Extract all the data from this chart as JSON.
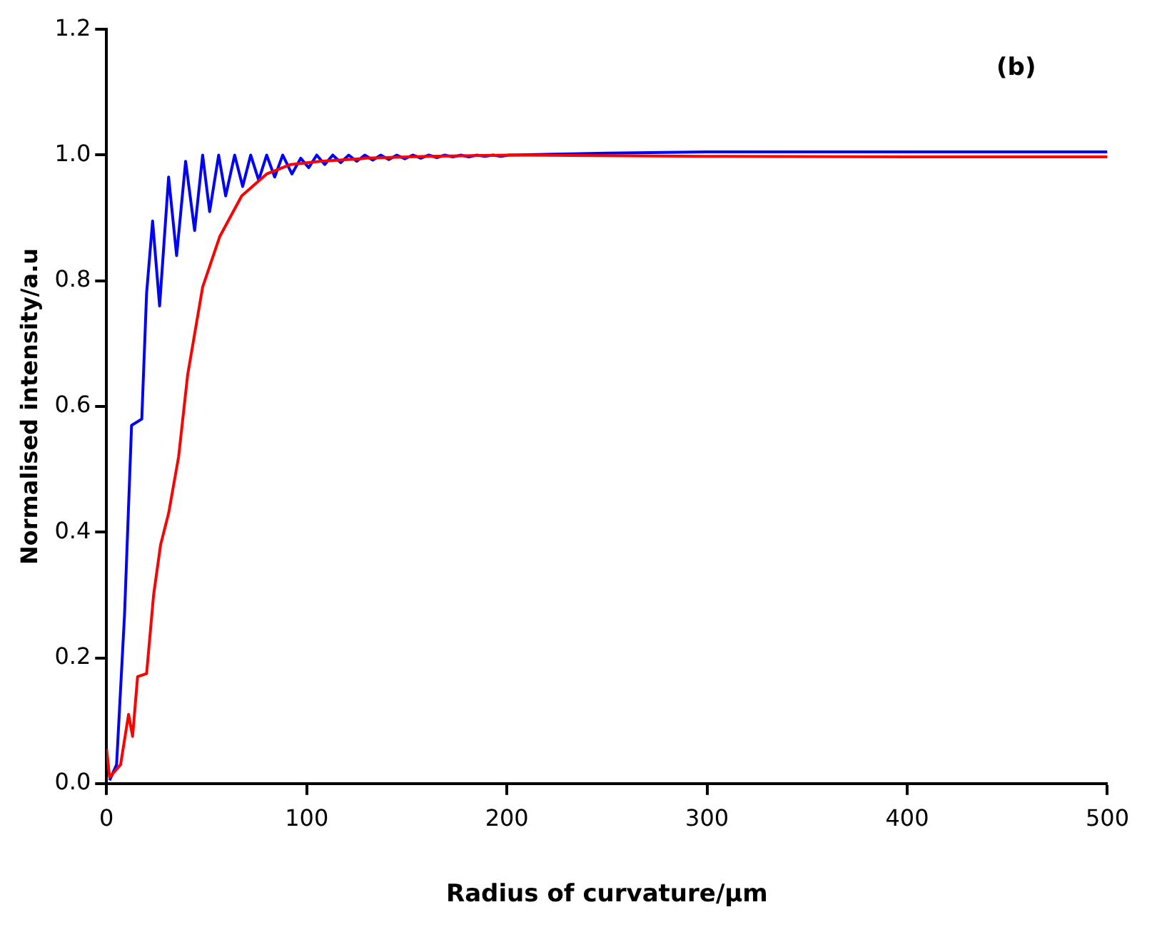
{
  "chart_data": {
    "type": "line",
    "xlabel": "Radius of curvature/µm",
    "ylabel": "Normalised intensity/a.u",
    "annotations": [
      "(b)"
    ],
    "xlim": [
      0,
      500
    ],
    "xticks": [
      0,
      100,
      200,
      300,
      400,
      500
    ],
    "ylim": [
      0,
      1.2
    ],
    "yticks": [
      {
        "value": 0,
        "label": "0.0"
      },
      0.2,
      0.4,
      0.6,
      0.8,
      {
        "value": 1,
        "label": "1.0"
      },
      1.2
    ],
    "grid": false,
    "legend": false,
    "marker": "none",
    "line_style": "solid",
    "series": [
      {
        "color": "#0000ff",
        "x": [
          1.5,
          5,
          9,
          12.5,
          17.6,
          20,
          23,
          26.5,
          31,
          35,
          39.5,
          44,
          48,
          51.5,
          56,
          59.5,
          64,
          68,
          72,
          76,
          80,
          84,
          88,
          92.6,
          97,
          101,
          105,
          109,
          113,
          117,
          121,
          125,
          129,
          133,
          137,
          141,
          145,
          149,
          153,
          157,
          161,
          165,
          169,
          173,
          177,
          181,
          185,
          189,
          193,
          197,
          201,
          250,
          300,
          400,
          500
        ],
        "values": [
          0.005,
          0.03,
          0.27,
          0.57,
          0.58,
          0.78,
          0.895,
          0.76,
          0.965,
          0.84,
          0.99,
          0.88,
          1.0,
          0.91,
          1.0,
          0.935,
          1.0,
          0.95,
          1.0,
          0.96,
          1.0,
          0.965,
          1.0,
          0.97,
          0.995,
          0.98,
          1.0,
          0.985,
          1.0,
          0.988,
          1.0,
          0.99,
          1.0,
          0.992,
          1.0,
          0.993,
          1.0,
          0.994,
          1.0,
          0.995,
          1.0,
          0.996,
          1.0,
          0.997,
          1.0,
          0.997,
          1.0,
          0.998,
          1.0,
          0.998,
          1.0,
          1.003,
          1.005,
          1.005,
          1.005
        ]
      },
      {
        "color": "#ff0000",
        "x": [
          0,
          1.5,
          7,
          11,
          13,
          15.5,
          20,
          23.5,
          27,
          31,
          36,
          40.5,
          48,
          56.5,
          67.5,
          80,
          92,
          106.6,
          130,
          160,
          200,
          300,
          400,
          500
        ],
        "values": [
          0.055,
          0.01,
          0.03,
          0.11,
          0.075,
          0.17,
          0.175,
          0.3,
          0.38,
          0.43,
          0.52,
          0.65,
          0.79,
          0.87,
          0.935,
          0.97,
          0.985,
          0.99,
          0.995,
          0.998,
          1.0,
          0.998,
          0.997,
          0.997
        ]
      }
    ]
  }
}
